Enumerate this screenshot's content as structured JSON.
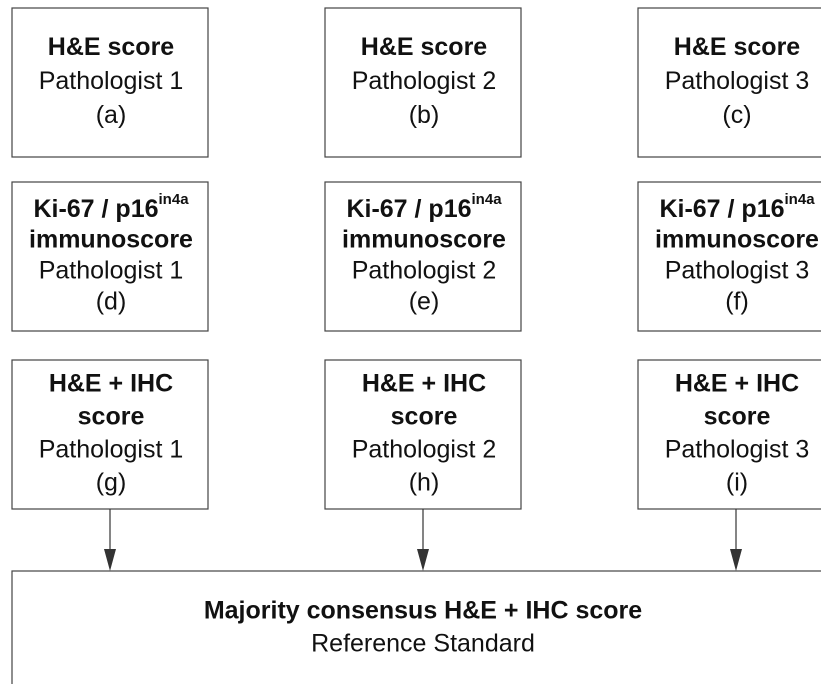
{
  "nodes": [
    {
      "heading": [
        "H&E score"
      ],
      "pathologist": "Pathologist 1",
      "label": "(a)"
    },
    {
      "heading": [
        "H&E score"
      ],
      "pathologist": "Pathologist 2",
      "label": "(b)"
    },
    {
      "heading": [
        "H&E score"
      ],
      "pathologist": "Pathologist 3",
      "label": "(c)"
    },
    {
      "heading": [
        "Ki-67 / p16",
        "immunoscore"
      ],
      "superscript": "in4a",
      "pathologist": "Pathologist 1",
      "label": "(d)"
    },
    {
      "heading": [
        "Ki-67 / p16",
        "immunoscore"
      ],
      "superscript": "in4a",
      "pathologist": "Pathologist 2",
      "label": "(e)"
    },
    {
      "heading": [
        "Ki-67 / p16",
        "immunoscore"
      ],
      "superscript": "in4a",
      "pathologist": "Pathologist 3",
      "label": "(f)"
    },
    {
      "heading": [
        "H&E + IHC",
        "score"
      ],
      "pathologist": "Pathologist 1",
      "label": "(g)"
    },
    {
      "heading": [
        "H&E + IHC",
        "score"
      ],
      "pathologist": "Pathologist 2",
      "label": "(h)"
    },
    {
      "heading": [
        "H&E + IHC",
        "score"
      ],
      "pathologist": "Pathologist 3",
      "label": "(i)"
    }
  ],
  "consensus": {
    "title": "Majority consensus H&E + IHC score",
    "subtitle": "Reference Standard"
  }
}
